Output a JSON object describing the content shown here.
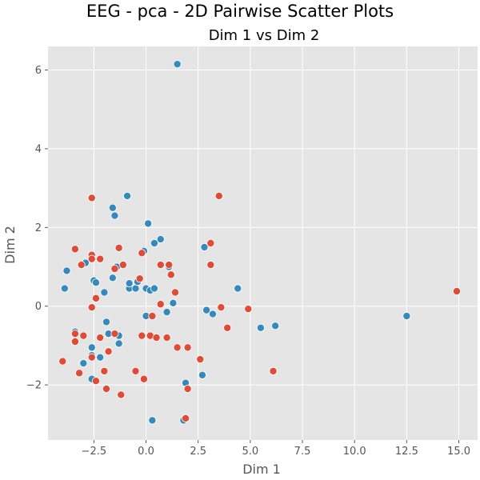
{
  "figure_title": "EEG - pca - 2D Pairwise Scatter Plots",
  "chart_data": {
    "type": "scatter",
    "title": "Dim 1 vs Dim 2",
    "xlabel": "Dim 1",
    "ylabel": "Dim 2",
    "xlim": [
      -4.7,
      15.9
    ],
    "ylim": [
      -3.4,
      6.6
    ],
    "xticks": [
      -2.5,
      0.0,
      2.5,
      5.0,
      7.5,
      10.0,
      12.5,
      15.0
    ],
    "xtick_labels": [
      "−2.5",
      "0.0",
      "2.5",
      "5.0",
      "7.5",
      "10.0",
      "12.5",
      "15.0"
    ],
    "yticks": [
      -2,
      0,
      2,
      4,
      6
    ],
    "ytick_labels": [
      "−2",
      "0",
      "2",
      "4",
      "6"
    ],
    "grid": true,
    "legend": "none",
    "background": "#e5e5e5",
    "gridline_color": "#ffffff",
    "series": [
      {
        "color": "#348abd",
        "points": [
          [
            1.5,
            6.15
          ],
          [
            -0.9,
            2.8
          ],
          [
            -1.6,
            2.5
          ],
          [
            -1.5,
            2.3
          ],
          [
            0.1,
            2.1
          ],
          [
            0.7,
            1.7
          ],
          [
            0.4,
            1.6
          ],
          [
            -0.1,
            1.4
          ],
          [
            2.8,
            1.5
          ],
          [
            -2.9,
            1.1
          ],
          [
            -3.8,
            0.9
          ],
          [
            -1.4,
            1.0
          ],
          [
            1.1,
            1.0
          ],
          [
            -3.9,
            0.45
          ],
          [
            -2.5,
            0.65
          ],
          [
            -2.4,
            0.6
          ],
          [
            -1.6,
            0.72
          ],
          [
            -0.8,
            0.45
          ],
          [
            -0.8,
            0.58
          ],
          [
            -0.5,
            0.45
          ],
          [
            -0.4,
            0.62
          ],
          [
            0.0,
            0.45
          ],
          [
            0.2,
            0.4
          ],
          [
            0.4,
            0.45
          ],
          [
            -2.0,
            0.35
          ],
          [
            4.4,
            0.45
          ],
          [
            1.3,
            0.08
          ],
          [
            2.9,
            -0.1
          ],
          [
            3.2,
            -0.2
          ],
          [
            1.0,
            -0.15
          ],
          [
            0.0,
            -0.25
          ],
          [
            -1.9,
            -0.4
          ],
          [
            -3.4,
            -0.65
          ],
          [
            -1.8,
            -0.7
          ],
          [
            -1.3,
            -0.75
          ],
          [
            -2.6,
            -1.05
          ],
          [
            -1.3,
            -0.95
          ],
          [
            -2.6,
            -1.25
          ],
          [
            -2.2,
            -1.3
          ],
          [
            -3.0,
            -1.45
          ],
          [
            2.7,
            -1.75
          ],
          [
            -2.6,
            -1.85
          ],
          [
            1.9,
            -1.95
          ],
          [
            5.5,
            -0.55
          ],
          [
            6.2,
            -0.5
          ],
          [
            12.5,
            -0.25
          ],
          [
            0.3,
            -2.9
          ],
          [
            1.8,
            -2.9
          ]
        ]
      },
      {
        "color": "#e24a33",
        "points": [
          [
            -2.6,
            2.75
          ],
          [
            3.5,
            2.8
          ],
          [
            -3.4,
            1.45
          ],
          [
            -1.3,
            1.48
          ],
          [
            3.1,
            1.6
          ],
          [
            -2.6,
            1.3
          ],
          [
            -0.2,
            1.35
          ],
          [
            -2.6,
            1.2
          ],
          [
            -3.1,
            1.05
          ],
          [
            -2.2,
            1.2
          ],
          [
            -1.1,
            1.05
          ],
          [
            -1.5,
            0.95
          ],
          [
            0.7,
            1.05
          ],
          [
            1.1,
            1.05
          ],
          [
            3.1,
            1.05
          ],
          [
            1.2,
            0.8
          ],
          [
            -0.3,
            0.7
          ],
          [
            1.4,
            0.35
          ],
          [
            -2.4,
            0.2
          ],
          [
            0.7,
            0.05
          ],
          [
            -2.6,
            -0.03
          ],
          [
            3.6,
            -0.03
          ],
          [
            4.9,
            -0.07
          ],
          [
            3.9,
            -0.55
          ],
          [
            0.3,
            -0.25
          ],
          [
            -3.4,
            -0.7
          ],
          [
            -3.0,
            -0.75
          ],
          [
            -1.5,
            -0.7
          ],
          [
            -0.2,
            -0.75
          ],
          [
            0.2,
            -0.75
          ],
          [
            0.5,
            -0.8
          ],
          [
            1.0,
            -0.8
          ],
          [
            -2.2,
            -0.8
          ],
          [
            -3.4,
            -0.9
          ],
          [
            -1.8,
            -1.15
          ],
          [
            1.5,
            -1.05
          ],
          [
            2.0,
            -1.05
          ],
          [
            -2.6,
            -1.3
          ],
          [
            2.6,
            -1.35
          ],
          [
            -4.0,
            -1.4
          ],
          [
            -0.5,
            -1.65
          ],
          [
            -2.0,
            -1.65
          ],
          [
            -3.2,
            -1.7
          ],
          [
            6.1,
            -1.65
          ],
          [
            -0.1,
            -1.85
          ],
          [
            -2.4,
            -1.9
          ],
          [
            -1.9,
            -2.1
          ],
          [
            2.0,
            -2.1
          ],
          [
            -1.2,
            -2.25
          ],
          [
            1.9,
            -2.85
          ],
          [
            14.9,
            0.38
          ]
        ]
      }
    ]
  }
}
